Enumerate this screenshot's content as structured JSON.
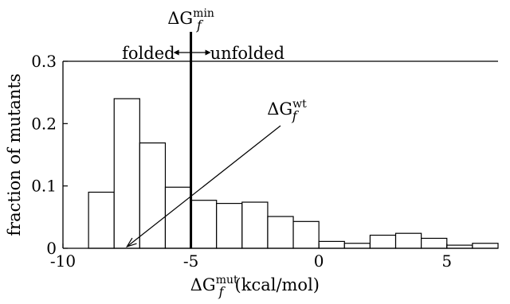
{
  "chart_data": {
    "type": "bar",
    "ylabel": "fraction of mutants",
    "xlabel": {
      "delta": "ΔG",
      "sub": "f",
      "sup": "mut",
      "suffix": "(kcal/mol)"
    },
    "xlim": [
      -10,
      7
    ],
    "ylim": [
      0,
      0.3
    ],
    "xticks": [
      {
        "value": -10,
        "label": "-10"
      },
      {
        "value": -5,
        "label": "-5"
      },
      {
        "value": 0,
        "label": "0"
      },
      {
        "value": 5,
        "label": "5"
      }
    ],
    "yticks": [
      {
        "value": 0,
        "label": "0"
      },
      {
        "value": 0.1,
        "label": "0.1"
      },
      {
        "value": 0.2,
        "label": "0.2"
      },
      {
        "value": 0.3,
        "label": "0.3"
      }
    ],
    "bin_width": 1,
    "bins": [
      {
        "x0": -9,
        "value": 0.09
      },
      {
        "x0": -8,
        "value": 0.24
      },
      {
        "x0": -7,
        "value": 0.169
      },
      {
        "x0": -6,
        "value": 0.098
      },
      {
        "x0": -5,
        "value": 0.077
      },
      {
        "x0": -4,
        "value": 0.072
      },
      {
        "x0": -3,
        "value": 0.074
      },
      {
        "x0": -2,
        "value": 0.051
      },
      {
        "x0": -1,
        "value": 0.043
      },
      {
        "x0": 0,
        "value": 0.011
      },
      {
        "x0": 1,
        "value": 0.008
      },
      {
        "x0": 2,
        "value": 0.021
      },
      {
        "x0": 3,
        "value": 0.024
      },
      {
        "x0": 4,
        "value": 0.016
      },
      {
        "x0": 5,
        "value": 0.005
      },
      {
        "x0": 6,
        "value": 0.008
      }
    ],
    "threshold": {
      "x": -5,
      "label": {
        "delta": "ΔG",
        "sub": "f",
        "sup": "min"
      },
      "left_text": "folded",
      "right_text": "unfolded"
    },
    "wildtype": {
      "x": -7.5,
      "label": {
        "delta": "ΔG",
        "sub": "f",
        "sup": "wt"
      }
    }
  }
}
